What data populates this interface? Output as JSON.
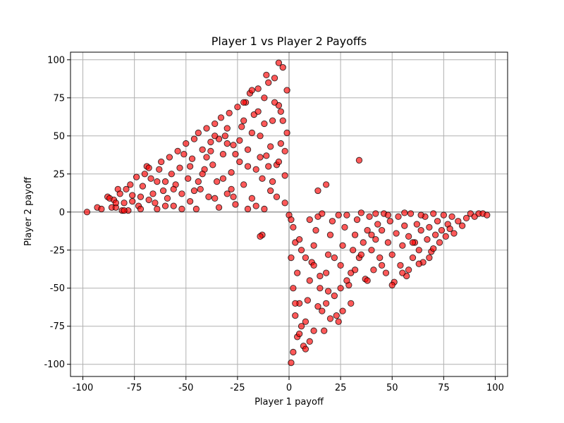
{
  "chart_data": {
    "type": "scatter",
    "title": "Player 1 vs Player 2 Payoffs",
    "xlabel": "Player 1 payoff",
    "ylabel": "Player 2 payoff",
    "xlim": [
      -106,
      106
    ],
    "ylim": [
      -108,
      105
    ],
    "xticks": [
      -100,
      -75,
      -50,
      -25,
      0,
      25,
      50,
      75,
      100
    ],
    "yticks": [
      -100,
      -75,
      -50,
      -25,
      0,
      25,
      50,
      75,
      100
    ],
    "grid": true,
    "reference_lines": {
      "x": 0,
      "y": 0
    },
    "marker_color": "#ff0000",
    "marker_edge_color": "#000000",
    "marker_alpha": 0.65,
    "series": [
      {
        "points": [
          [
            -98,
            0
          ],
          [
            -93,
            3
          ],
          [
            -91,
            2
          ],
          [
            -88,
            10
          ],
          [
            -87,
            9
          ],
          [
            -86,
            3
          ],
          [
            -85,
            8
          ],
          [
            -84,
            3
          ],
          [
            -83,
            15
          ],
          [
            -82,
            12
          ],
          [
            -81,
            1
          ],
          [
            -80,
            6
          ],
          [
            -79,
            15
          ],
          [
            -78,
            1
          ],
          [
            -77,
            18
          ],
          [
            -76,
            11
          ],
          [
            -74,
            23
          ],
          [
            -73,
            4
          ],
          [
            -72,
            10
          ],
          [
            -71,
            17
          ],
          [
            -70,
            25
          ],
          [
            -69,
            30
          ],
          [
            -68,
            29
          ],
          [
            -67,
            22
          ],
          [
            -66,
            12
          ],
          [
            -65,
            6
          ],
          [
            -64,
            2
          ],
          [
            -63,
            28
          ],
          [
            -62,
            33
          ],
          [
            -61,
            14
          ],
          [
            -60,
            20
          ],
          [
            -59,
            9
          ],
          [
            -58,
            36
          ],
          [
            -57,
            25
          ],
          [
            -56,
            4
          ],
          [
            -55,
            18
          ],
          [
            -54,
            40
          ],
          [
            -53,
            29
          ],
          [
            -52,
            12
          ],
          [
            -51,
            38
          ],
          [
            -50,
            45
          ],
          [
            -49,
            22
          ],
          [
            -48,
            7
          ],
          [
            -47,
            35
          ],
          [
            -46,
            48
          ],
          [
            -45,
            2
          ],
          [
            -44,
            52
          ],
          [
            -43,
            15
          ],
          [
            -42,
            41
          ],
          [
            -41,
            28
          ],
          [
            -40,
            55
          ],
          [
            -39,
            10
          ],
          [
            -38,
            46
          ],
          [
            -37,
            31
          ],
          [
            -36,
            58
          ],
          [
            -35,
            20
          ],
          [
            -34,
            3
          ],
          [
            -33,
            62
          ],
          [
            -32,
            38
          ],
          [
            -31,
            50
          ],
          [
            -30,
            12
          ],
          [
            -29,
            65
          ],
          [
            -28,
            26
          ],
          [
            -27,
            44
          ],
          [
            -26,
            5
          ],
          [
            -25,
            69
          ],
          [
            -24,
            33
          ],
          [
            -23,
            56
          ],
          [
            -22,
            18
          ],
          [
            -21,
            72
          ],
          [
            -20,
            41
          ],
          [
            -19,
            78
          ],
          [
            -18,
            9
          ],
          [
            -17,
            64
          ],
          [
            -16,
            28
          ],
          [
            -15,
            81
          ],
          [
            -14,
            50
          ],
          [
            -13,
            22
          ],
          [
            -12,
            75
          ],
          [
            -11,
            37
          ],
          [
            -10,
            85
          ],
          [
            -9,
            14
          ],
          [
            -8,
            60
          ],
          [
            -7,
            88
          ],
          [
            -6,
            31
          ],
          [
            -5,
            70
          ],
          [
            -4,
            45
          ],
          [
            -3,
            95
          ],
          [
            -2,
            6
          ],
          [
            -1,
            80
          ],
          [
            -1,
            52
          ],
          [
            -2,
            24
          ],
          [
            -4,
            66
          ],
          [
            -6,
            10
          ],
          [
            -9,
            43
          ],
          [
            -12,
            58
          ],
          [
            -16,
            4
          ],
          [
            -20,
            30
          ],
          [
            -24,
            47
          ],
          [
            -28,
            15
          ],
          [
            -32,
            22
          ],
          [
            -36,
            9
          ],
          [
            -40,
            36
          ],
          [
            -44,
            20
          ],
          [
            -48,
            30
          ],
          [
            -52,
            2
          ],
          [
            -56,
            15
          ],
          [
            -60,
            4
          ],
          [
            -64,
            20
          ],
          [
            -68,
            8
          ],
          [
            -72,
            2
          ],
          [
            -76,
            7
          ],
          [
            -80,
            1
          ],
          [
            -84,
            6
          ],
          [
            -10,
            30
          ],
          [
            -5,
            33
          ],
          [
            -2,
            40
          ],
          [
            -14,
            36
          ],
          [
            -18,
            52
          ],
          [
            -22,
            60
          ],
          [
            -26,
            38
          ],
          [
            -30,
            45
          ],
          [
            -34,
            48
          ],
          [
            -38,
            40
          ],
          [
            -42,
            25
          ],
          [
            -46,
            14
          ],
          [
            -8,
            20
          ],
          [
            -12,
            2
          ],
          [
            -20,
            2
          ],
          [
            -27,
            10
          ],
          [
            -15,
            66
          ],
          [
            -7,
            72
          ],
          [
            -3,
            60
          ],
          [
            -11,
            90
          ],
          [
            -5,
            98
          ],
          [
            -18,
            80
          ],
          [
            -22,
            72
          ],
          [
            -30,
            55
          ],
          [
            -36,
            50
          ],
          [
            -13,
            -15
          ],
          [
            -14,
            -16
          ],
          [
            0,
            -2
          ],
          [
            1,
            -5
          ],
          [
            2,
            -10
          ],
          [
            3,
            -20
          ],
          [
            1,
            -30
          ],
          [
            4,
            -40
          ],
          [
            2,
            -50
          ],
          [
            5,
            -60
          ],
          [
            3,
            -68
          ],
          [
            6,
            -75
          ],
          [
            4,
            -82
          ],
          [
            2,
            -92
          ],
          [
            1,
            -99
          ],
          [
            7,
            -88
          ],
          [
            8,
            -72
          ],
          [
            9,
            -58
          ],
          [
            10,
            -45
          ],
          [
            11,
            -33
          ],
          [
            12,
            -22
          ],
          [
            13,
            -12
          ],
          [
            14,
            -3
          ],
          [
            15,
            -50
          ],
          [
            16,
            -65
          ],
          [
            17,
            -78
          ],
          [
            18,
            -40
          ],
          [
            19,
            -28
          ],
          [
            20,
            -15
          ],
          [
            21,
            -6
          ],
          [
            22,
            -55
          ],
          [
            23,
            -68
          ],
          [
            24,
            -72
          ],
          [
            25,
            -35
          ],
          [
            26,
            -22
          ],
          [
            27,
            -10
          ],
          [
            28,
            -2
          ],
          [
            29,
            -48
          ],
          [
            30,
            -40
          ],
          [
            31,
            -25
          ],
          [
            32,
            -15
          ],
          [
            33,
            -5
          ],
          [
            34,
            -30
          ],
          [
            35,
            -0.5
          ],
          [
            36,
            -20
          ],
          [
            37,
            -44
          ],
          [
            38,
            -12
          ],
          [
            39,
            -3
          ],
          [
            40,
            -25
          ],
          [
            41,
            -38
          ],
          [
            42,
            -18
          ],
          [
            43,
            -8
          ],
          [
            44,
            -30
          ],
          [
            45,
            -12
          ],
          [
            46,
            -1
          ],
          [
            47,
            -40
          ],
          [
            48,
            -20
          ],
          [
            49,
            -6
          ],
          [
            50,
            -28
          ],
          [
            51,
            -46
          ],
          [
            52,
            -14
          ],
          [
            53,
            -3
          ],
          [
            54,
            -35
          ],
          [
            55,
            -22
          ],
          [
            56,
            -9
          ],
          [
            57,
            -42
          ],
          [
            58,
            -16
          ],
          [
            59,
            -1
          ],
          [
            60,
            -30
          ],
          [
            61,
            -20
          ],
          [
            62,
            -8
          ],
          [
            63,
            -25
          ],
          [
            64,
            -12
          ],
          [
            65,
            -33
          ],
          [
            66,
            -3
          ],
          [
            67,
            -18
          ],
          [
            68,
            -10
          ],
          [
            69,
            -26
          ],
          [
            70,
            -1
          ],
          [
            71,
            -15
          ],
          [
            72,
            -6
          ],
          [
            73,
            -20
          ],
          [
            74,
            -12
          ],
          [
            75,
            -2
          ],
          [
            76,
            -16
          ],
          [
            77,
            -8
          ],
          [
            78,
            -11
          ],
          [
            79,
            -3
          ],
          [
            80,
            -14
          ],
          [
            82,
            -6
          ],
          [
            84,
            -9
          ],
          [
            86,
            -4
          ],
          [
            88,
            -1
          ],
          [
            90,
            -3
          ],
          [
            92,
            -1
          ],
          [
            94,
            -1
          ],
          [
            96,
            -2
          ],
          [
            12,
            -35
          ],
          [
            15,
            -42
          ],
          [
            18,
            -60
          ],
          [
            20,
            -70
          ],
          [
            22,
            -30
          ],
          [
            25,
            -50
          ],
          [
            28,
            -45
          ],
          [
            30,
            -60
          ],
          [
            32,
            -38
          ],
          [
            35,
            -28
          ],
          [
            38,
            -45
          ],
          [
            40,
            -15
          ],
          [
            45,
            -35
          ],
          [
            50,
            -48
          ],
          [
            55,
            -40
          ],
          [
            60,
            -20
          ],
          [
            5,
            -18
          ],
          [
            6,
            -25
          ],
          [
            8,
            -30
          ],
          [
            10,
            -5
          ],
          [
            16,
            -1
          ],
          [
            24,
            -2
          ],
          [
            3,
            -60
          ],
          [
            5,
            -80
          ],
          [
            8,
            -90
          ],
          [
            10,
            -85
          ],
          [
            12,
            -78
          ],
          [
            14,
            -62
          ],
          [
            19,
            -52
          ],
          [
            26,
            -65
          ],
          [
            34,
            34
          ],
          [
            18,
            18
          ],
          [
            14,
            14
          ],
          [
            42,
            -1
          ],
          [
            48,
            -2
          ],
          [
            56,
            -0.5
          ],
          [
            64,
            -2
          ],
          [
            70,
            -24
          ],
          [
            68,
            -30
          ],
          [
            63,
            -34
          ],
          [
            58,
            -38
          ]
        ]
      }
    ]
  }
}
